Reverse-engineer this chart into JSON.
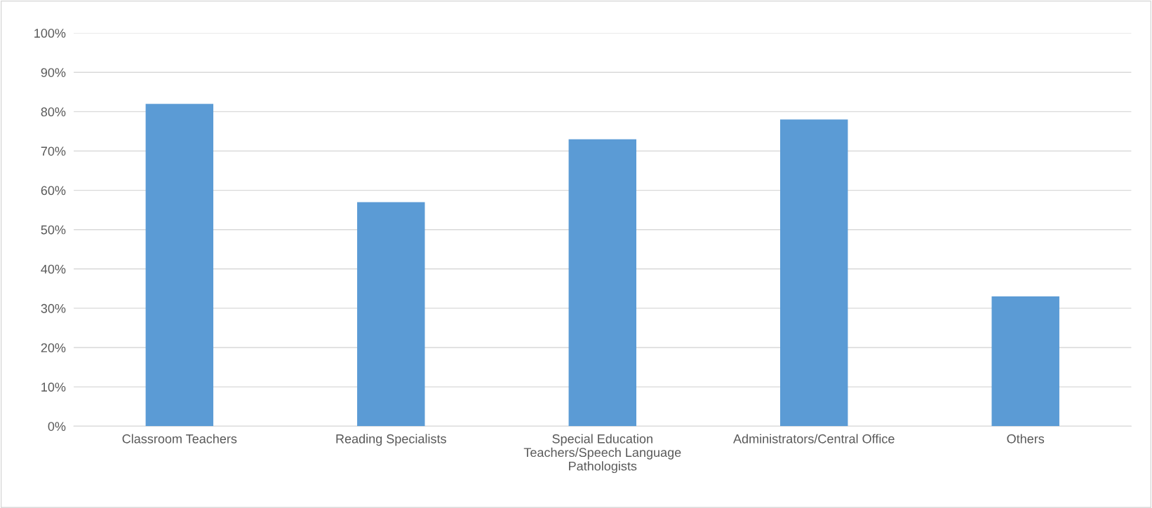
{
  "chart_data": {
    "type": "bar",
    "categories": [
      "Classroom Teachers",
      "Reading Specialists",
      "Special Education\nTeachers/Speech Language\nPathologists",
      "Administrators/Central Office",
      "Others"
    ],
    "values": [
      0.82,
      0.57,
      0.73,
      0.78,
      0.33
    ],
    "color": "#5b9bd5",
    "ylim": [
      0,
      1
    ],
    "yticks": [
      {
        "value": 0,
        "label": "0%"
      },
      {
        "value": 0.1,
        "label": "10%"
      },
      {
        "value": 0.2,
        "label": "20%"
      },
      {
        "value": 0.3,
        "label": "30%"
      },
      {
        "value": 0.4,
        "label": "40%"
      },
      {
        "value": 0.5,
        "label": "50%"
      },
      {
        "value": 0.6,
        "label": "60%"
      },
      {
        "value": 0.7,
        "label": "70%"
      },
      {
        "value": 0.8,
        "label": "80%"
      },
      {
        "value": 0.9,
        "label": "90%"
      },
      {
        "value": 1,
        "label": "100%"
      }
    ],
    "grid": "y"
  }
}
